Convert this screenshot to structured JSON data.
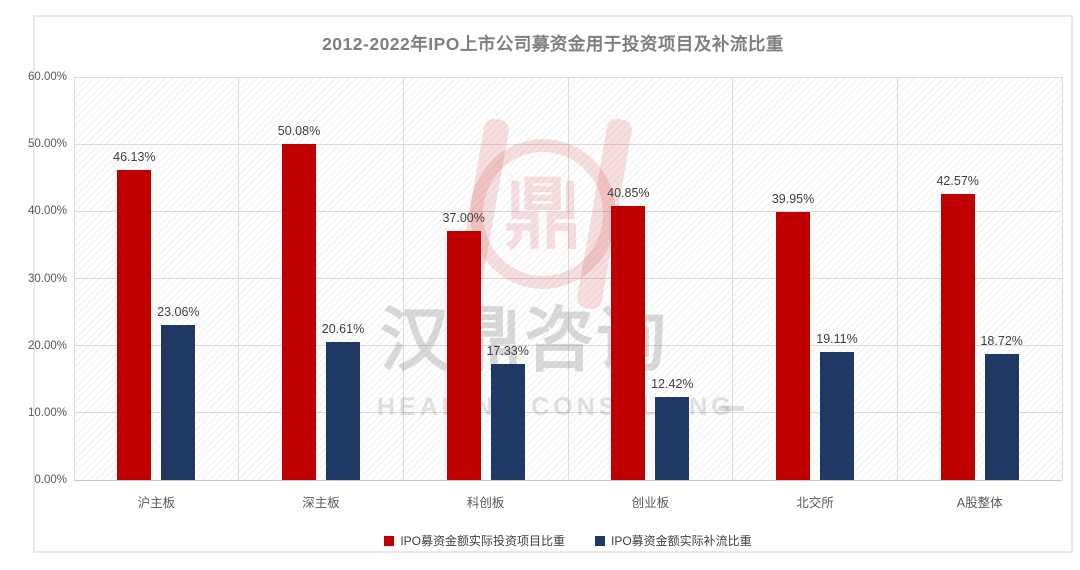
{
  "title": "2012-2022年IPO上市公司募资金用于投资项目及补流比重",
  "chart_data": {
    "type": "bar",
    "categories": [
      "沪主板",
      "深主板",
      "科创板",
      "创业板",
      "北交所",
      "A股整体"
    ],
    "series": [
      {
        "name": "IPO募资金额实际投资项目比重",
        "color": "#C00000",
        "values": [
          46.13,
          50.08,
          37.0,
          40.85,
          39.95,
          42.57
        ],
        "labels": [
          "46.13%",
          "50.08%",
          "37.00%",
          "40.85%",
          "39.95%",
          "42.57%"
        ]
      },
      {
        "name": "IPO募资金额实际补流比重",
        "color": "#1F3864",
        "values": [
          23.06,
          20.61,
          17.33,
          12.42,
          19.11,
          18.72
        ],
        "labels": [
          "23.06%",
          "20.61%",
          "17.33%",
          "12.42%",
          "19.11%",
          "18.72%"
        ]
      }
    ],
    "ylim": [
      0,
      60
    ],
    "yticks": [
      "0.00%",
      "10.00%",
      "20.00%",
      "30.00%",
      "40.00%",
      "50.00%",
      "60.00%"
    ],
    "grid": true,
    "legend_position": "bottom",
    "plot_background": "diagonal-hatch"
  },
  "watermark": {
    "logo_glyph": "鼎",
    "cn_text": "汉鼎咨询",
    "en_text": "HEADING CONSULTING"
  },
  "colors": {
    "bar_invest": "#C00000",
    "bar_supplement": "#1F3864",
    "title": "#7F7F7F",
    "axis_text": "#595959",
    "value_label": "#404040",
    "gridline": "#DADADA",
    "card_border": "#E9E9E9"
  }
}
